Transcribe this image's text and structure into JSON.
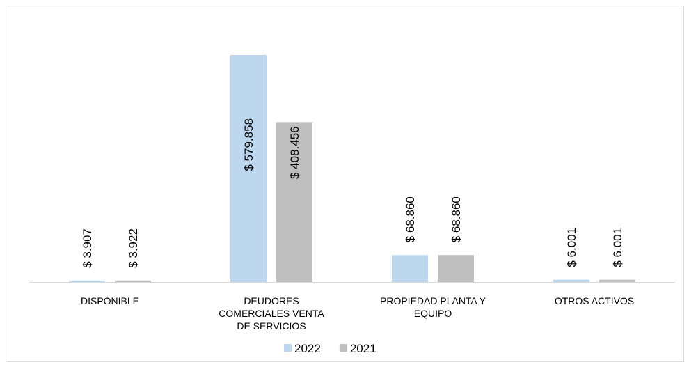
{
  "chart_data": {
    "type": "bar",
    "categories": [
      "DISPONIBLE",
      "DEUDORES COMERCIALES VENTA DE SERVICIOS",
      "PROPIEDAD PLANTA Y EQUIPO",
      "OTROS ACTIVOS"
    ],
    "series": [
      {
        "name": "2022",
        "color": "#bdd7ee",
        "values": [
          3907,
          579858,
          68860,
          6001
        ],
        "value_labels": [
          "$ 3.907",
          "$ 579.858",
          "$ 68.860",
          "$ 6.001"
        ]
      },
      {
        "name": "2021",
        "color": "#bfbfbf",
        "values": [
          3922,
          408456,
          68860,
          6001
        ],
        "value_labels": [
          "$ 3.922",
          "$ 408.456",
          "$ 68.860",
          "$ 6.001"
        ]
      }
    ],
    "legend": "bottom"
  }
}
